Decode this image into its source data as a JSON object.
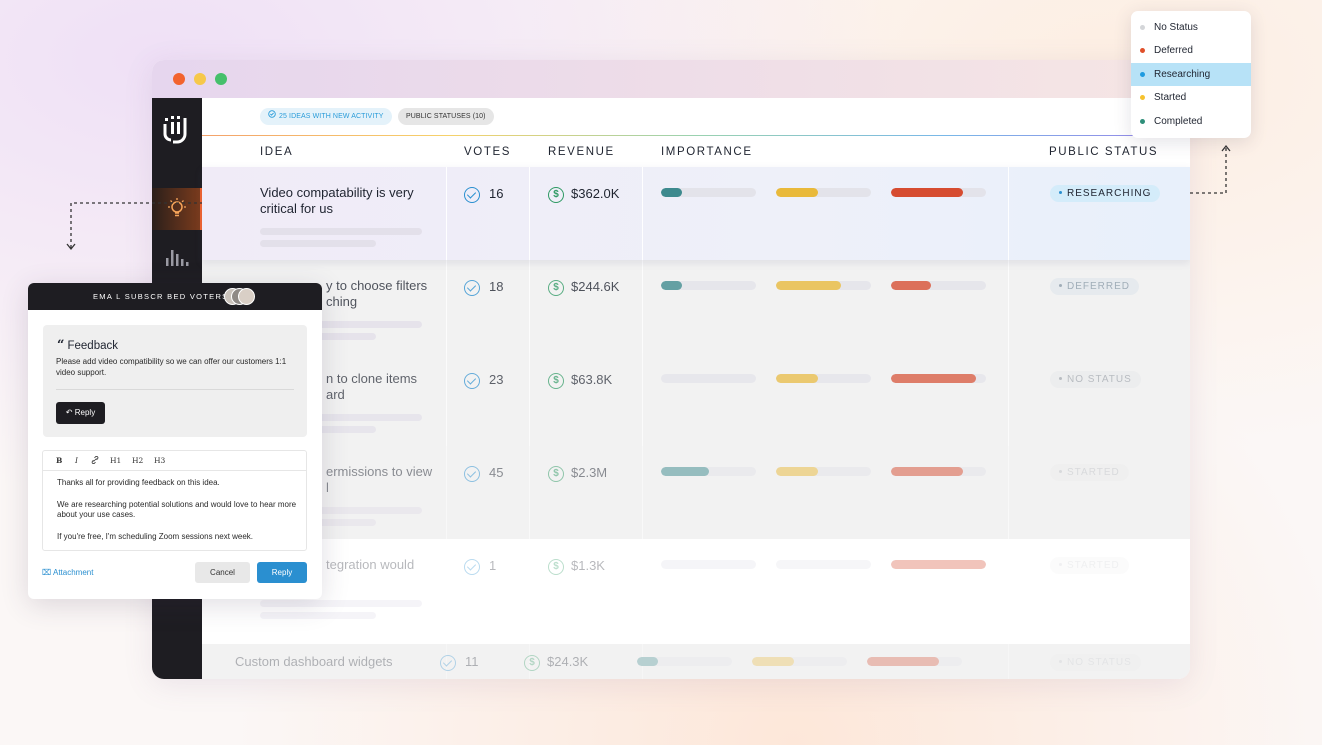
{
  "window": {
    "chips": {
      "activity": "25 ideas with new activity",
      "public_statuses": "Public statuses (10)"
    }
  },
  "columns": {
    "idea": "IDEA",
    "votes": "VOTES",
    "revenue": "REVENUE",
    "importance": "IMPORTANCE",
    "public_status": "PUBLIC STATUS"
  },
  "rows": [
    {
      "idea_line1": "Video compatability is very",
      "idea_line2": "critical for us",
      "votes": "16",
      "revenue": "$362.0K",
      "importance": [
        0.22,
        0.44,
        0.76
      ],
      "status": "RESEARCHING",
      "status_color": "#2a8fd0",
      "status_bg": "#d4ecfa"
    },
    {
      "idea_line1": "y to choose filters",
      "idea_line2": "ching",
      "votes": "18",
      "revenue": "$244.6K",
      "importance": [
        0.22,
        0.68,
        0.42
      ],
      "status": "DEFERRED",
      "status_color": "#8a9aa8",
      "status_bg": "#e3e9ee"
    },
    {
      "idea_line1": "n to clone items",
      "idea_line2": "ard",
      "votes": "23",
      "revenue": "$63.8K",
      "importance": [
        0.0,
        0.44,
        0.89
      ],
      "status": "NO STATUS",
      "status_color": "#a0a6ad",
      "status_bg": "#eaebed"
    },
    {
      "idea_line1": "ermissions to view",
      "idea_line2": "l",
      "votes": "45",
      "revenue": "$2.3M",
      "importance": [
        0.5,
        0.44,
        0.76
      ],
      "status": "STARTED",
      "status_color": "#c0c3c7",
      "status_bg": "#eeeeee"
    },
    {
      "idea_line1": "tegration would",
      "idea_line2": "",
      "votes": "1",
      "revenue": "$1.3K",
      "importance": [
        0.0,
        0.0,
        1.0
      ],
      "status": "STARTED",
      "status_color": "#d0d2d5",
      "status_bg": "#f3f3f3"
    },
    {
      "idea_line1": "Custom dashboard widgets",
      "idea_line2": "",
      "votes": "11",
      "revenue": "$24.3K",
      "importance": [
        0.22,
        0.44,
        0.76
      ],
      "status": "NO STATUS",
      "status_color": "#c6c9cd",
      "status_bg": "#ededed"
    }
  ],
  "status_dropdown": {
    "items": [
      {
        "label": "No Status",
        "color": "#d4d6d9"
      },
      {
        "label": "Deferred",
        "color": "#e0502a"
      },
      {
        "label": "Researching",
        "color": "#1e9be0"
      },
      {
        "label": "Started",
        "color": "#f6c22e"
      },
      {
        "label": "Completed",
        "color": "#2f8f7a"
      }
    ],
    "selected": "Researching"
  },
  "feedback_card": {
    "header": "EMA L SUBSCR BED VOTERS",
    "feedback_title": "Feedback",
    "feedback_body": "Please add video compatibility so we can offer our customers 1:1 video support.",
    "reply_button": "Reply",
    "toolbar": [
      "B",
      "I",
      "H1",
      "H2",
      "H3"
    ],
    "editor_paragraphs": [
      "Thanks all for providing feedback on this idea.",
      "We are researching potential solutions and would love to hear more about your use cases.",
      "If you're free, I'm scheduling Zoom sessions next week."
    ],
    "attachment": "Attachment",
    "cancel": "Cancel",
    "submit": "Reply"
  },
  "colors": {
    "bar_colors": [
      "#3d8a8e",
      "#e9b93a",
      "#d64c30"
    ],
    "accent": "#2a8fd0",
    "sidebar": "#1e1d22"
  }
}
